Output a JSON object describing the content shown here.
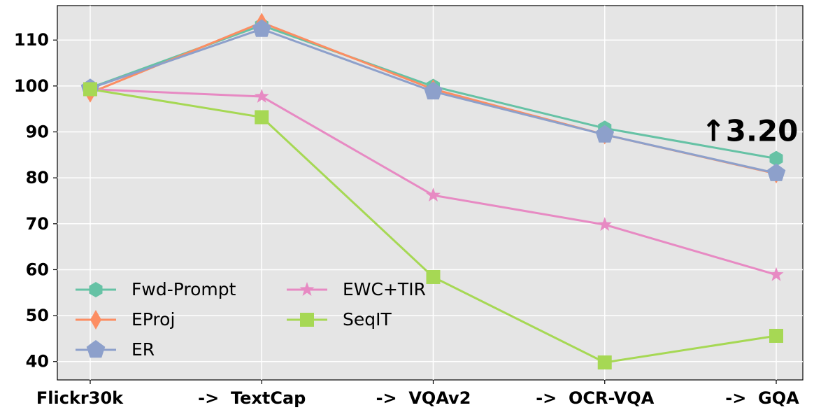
{
  "chart_data": {
    "type": "line",
    "categories": [
      "Flickr30k",
      "->  TextCap",
      "->  VQAv2",
      "->  OCR-VQA",
      "->  GQA"
    ],
    "series": [
      {
        "name": "Fwd-Prompt",
        "color": "#66c2a5",
        "marker": "hexagon",
        "values": [
          99.6,
          113.2,
          99.9,
          90.8,
          84.2
        ]
      },
      {
        "name": "EProj",
        "color": "#fc8d62",
        "marker": "thin_diamond",
        "values": [
          98.5,
          113.8,
          99.3,
          89.4,
          80.9
        ]
      },
      {
        "name": "ER",
        "color": "#8da0cb",
        "marker": "pentagon",
        "values": [
          99.5,
          112.4,
          98.8,
          89.4,
          81.0
        ]
      },
      {
        "name": "EWC+TIR",
        "color": "#e78ac3",
        "marker": "star",
        "values": [
          99.3,
          97.7,
          76.2,
          69.8,
          58.9
        ]
      },
      {
        "name": "SeqIT",
        "color": "#a6d854",
        "marker": "square",
        "values": [
          99.3,
          93.2,
          58.4,
          39.8,
          45.6
        ]
      }
    ],
    "ylim": [
      36,
      117.5
    ],
    "yticks": [
      40,
      50,
      60,
      70,
      80,
      90,
      100,
      110
    ],
    "grid": true,
    "legend": "lower left",
    "legend_columns": 2,
    "annotation": "↑3.20"
  }
}
